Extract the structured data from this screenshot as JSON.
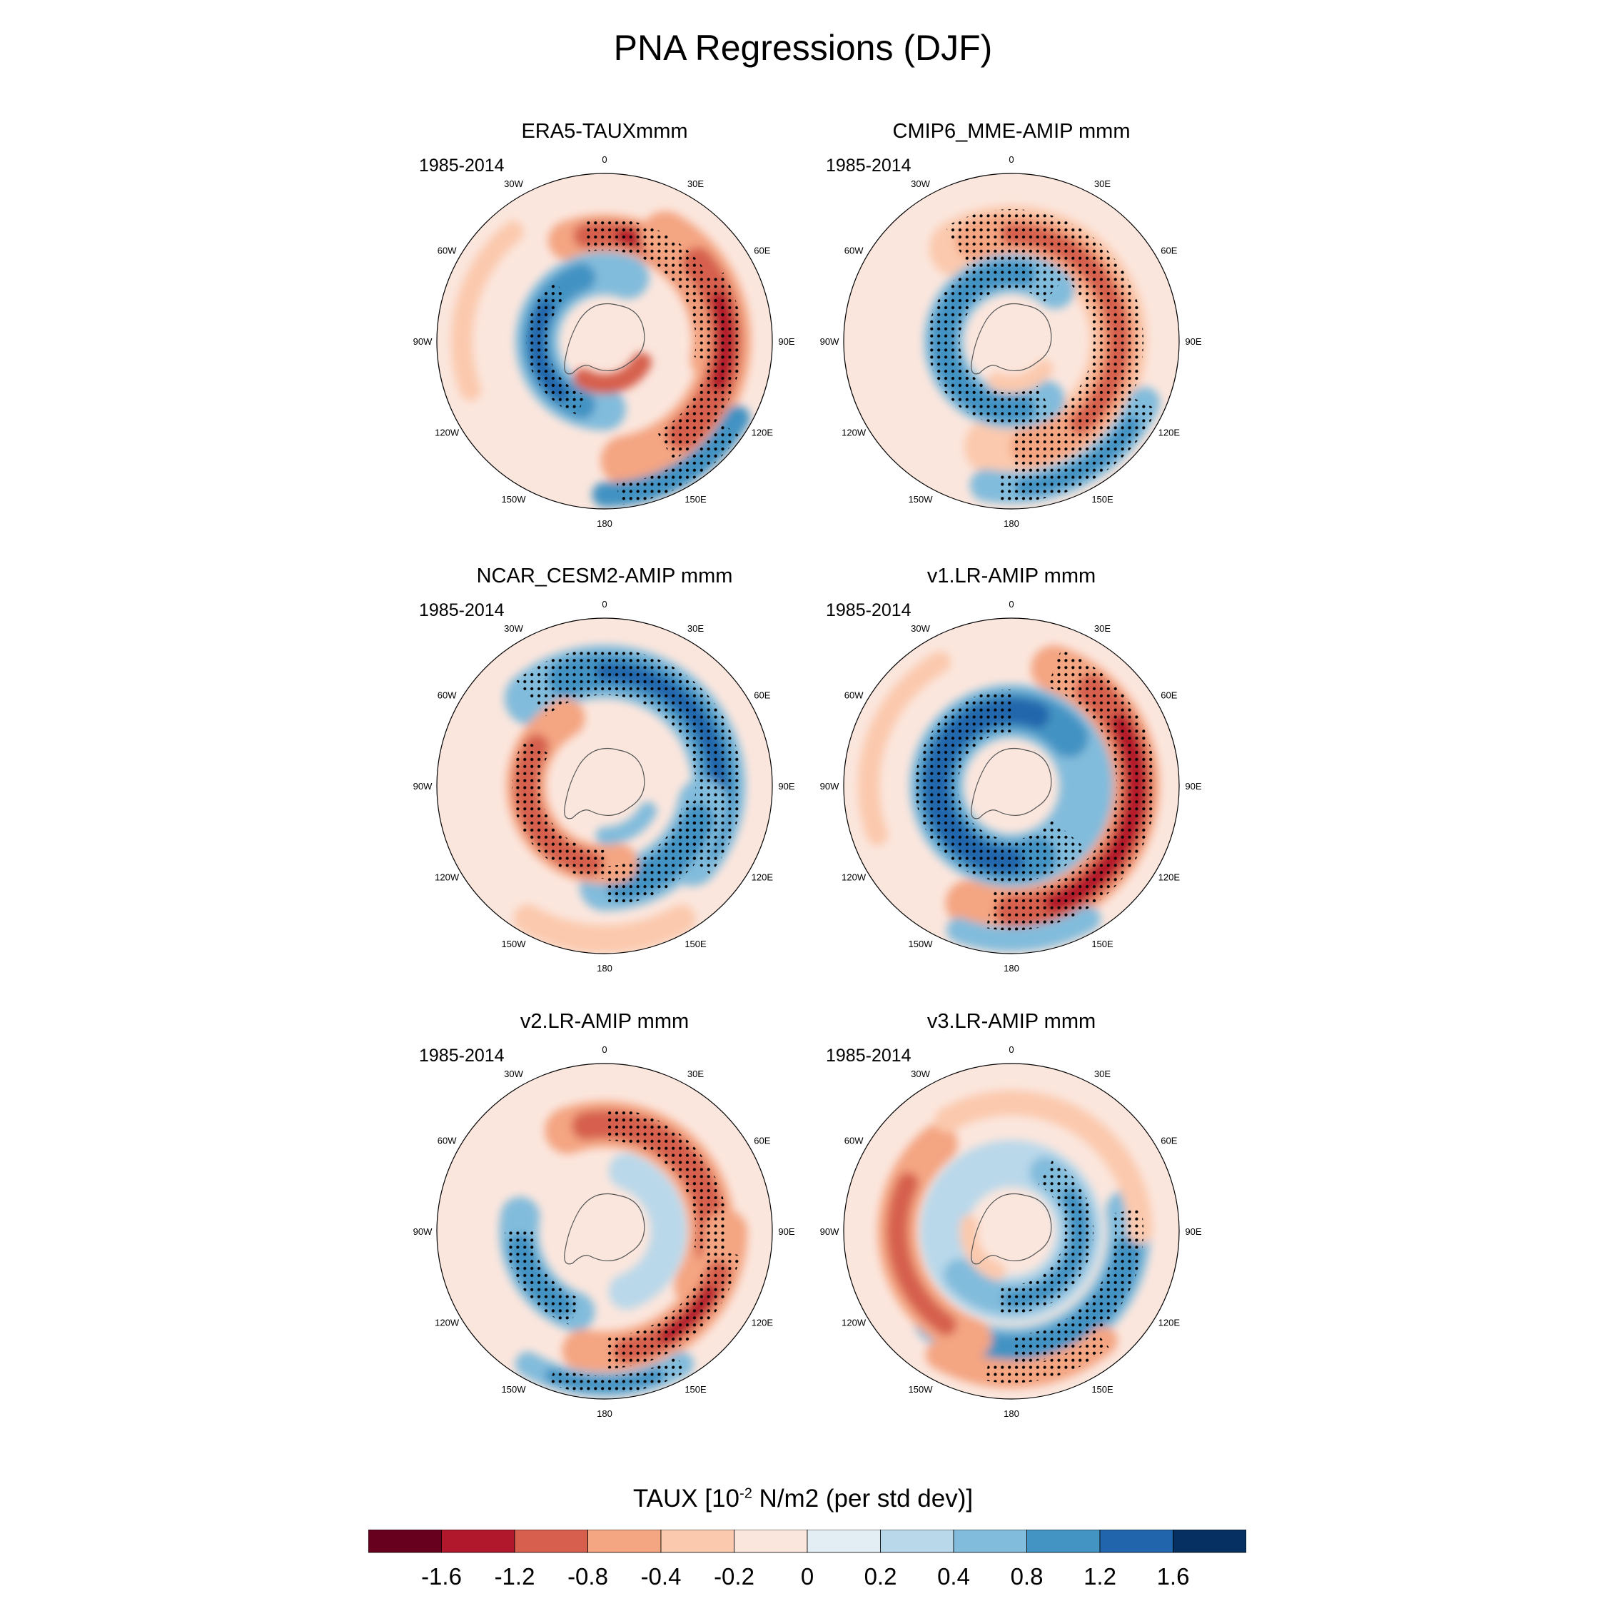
{
  "title": "PNA Regressions (DJF)",
  "period_label": "1985-2014",
  "longitude_labels": [
    "0",
    "30E",
    "60E",
    "90E",
    "120E",
    "150E",
    "180",
    "150W",
    "120W",
    "90W",
    "60W",
    "30W"
  ],
  "colorbar": {
    "title_prefix": "TAUX [10",
    "title_exponent": "-2",
    "title_suffix": " N/m2 (per std dev)]",
    "tick_labels": [
      "-1.6",
      "-1.2",
      "-0.8",
      "-0.4",
      "-0.2",
      "0",
      "0.2",
      "0.4",
      "0.8",
      "1.2",
      "1.6"
    ],
    "colors": [
      "#67001f",
      "#b2182b",
      "#d6604d",
      "#f4a582",
      "#fbc9ad",
      "#fbe6dd",
      "#e2edf4",
      "#b9d8ea",
      "#82bcdc",
      "#4393c3",
      "#2166ac",
      "#053061"
    ]
  },
  "chart_data": [
    {
      "type": "heatmap",
      "title": "ERA5-TAUXmmm",
      "period": "1985-2014",
      "projection": "south-polar-stereographic",
      "variable": "TAUX",
      "units": "10^-2 N/m2 (per std dev)"
    },
    {
      "type": "heatmap",
      "title": "CMIP6_MME-AMIP  mmm",
      "period": "1985-2014",
      "projection": "south-polar-stereographic",
      "variable": "TAUX",
      "units": "10^-2 N/m2 (per std dev)"
    },
    {
      "type": "heatmap",
      "title": "NCAR_CESM2-AMIP  mmm",
      "period": "1985-2014",
      "projection": "south-polar-stereographic",
      "variable": "TAUX",
      "units": "10^-2 N/m2 (per std dev)"
    },
    {
      "type": "heatmap",
      "title": "v1.LR-AMIP  mmm",
      "period": "1985-2014",
      "projection": "south-polar-stereographic",
      "variable": "TAUX",
      "units": "10^-2 N/m2 (per std dev)"
    },
    {
      "type": "heatmap",
      "title": "v2.LR-AMIP  mmm",
      "period": "1985-2014",
      "projection": "south-polar-stereographic",
      "variable": "TAUX",
      "units": "10^-2 N/m2 (per std dev)"
    },
    {
      "type": "heatmap",
      "title": "v3.LR-AMIP  mmm",
      "period": "1985-2014",
      "projection": "south-polar-stereographic",
      "variable": "TAUX",
      "units": "10^-2 N/m2 (per std dev)"
    }
  ]
}
